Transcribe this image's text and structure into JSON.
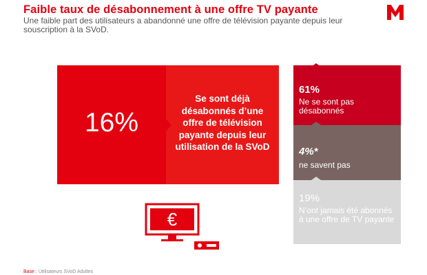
{
  "header": {
    "title": "Faible taux de désabonnement à une offre TV payante",
    "subtitle": "Une faible part des utilisateurs a abandonné une offre de télévision payante depuis leur souscription à la SVoD."
  },
  "main_stat": {
    "value": "16%",
    "text": "Se sont déjà désabonnés d’une offre de télévision payante depuis leur utilisation de la SVoD"
  },
  "segments": [
    {
      "value": "61%",
      "label": "Ne se sont pas désabonnés",
      "color": "#c6001e"
    },
    {
      "value": "4%*",
      "label": "ne savent pas",
      "color": "#7a6461"
    },
    {
      "value": "19%",
      "label": "N’ont jamais été abonnés à une offre de TV payante",
      "color": "#d9d9d9"
    }
  ],
  "icons": {
    "logo": "brand-m-logo",
    "tv": "tv-euro-icon"
  },
  "footer": {
    "label": "Base :",
    "text": "Utilisateurs SVoD Adultes"
  },
  "colors": {
    "accent": "#e3000f",
    "dark_red": "#c6001e",
    "brown": "#7a6461",
    "grey": "#d9d9d9"
  }
}
